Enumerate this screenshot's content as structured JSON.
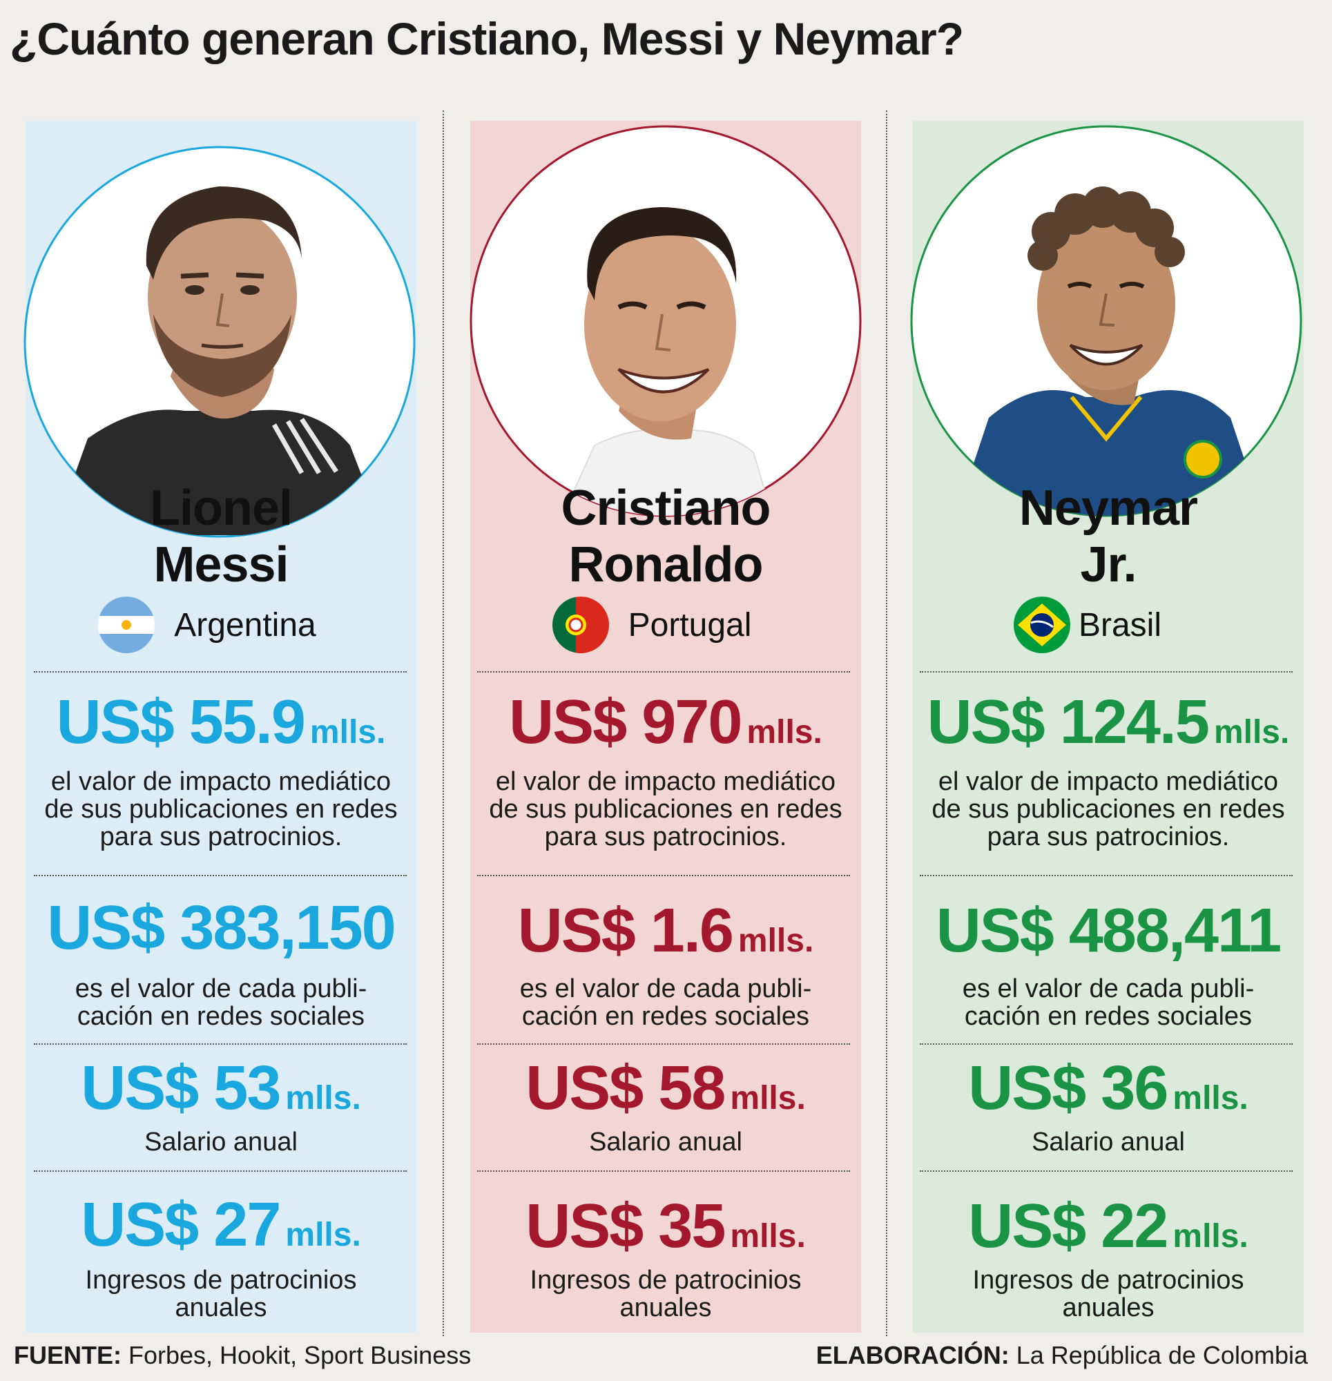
{
  "title": "¿Cuánto generan Cristiano, Messi y Neymar?",
  "colors": {
    "messi": "#1aa7de",
    "ronaldo": "#a3182d",
    "neymar": "#1b9344"
  },
  "players": [
    {
      "name_line1": "Lionel",
      "name_line2": "Messi",
      "country": "Argentina",
      "flag_icon": "argentina-flag-icon",
      "stats": [
        {
          "value": "US$ 55.9",
          "unit": "mlls.",
          "desc": [
            "el valor de impacto mediático",
            "de sus publicaciones en redes",
            "para sus patrocinios."
          ]
        },
        {
          "value": "US$ 383,150",
          "unit": "",
          "desc": [
            "es el valor de cada publi-",
            "cación en redes sociales"
          ]
        },
        {
          "value": "US$ 53",
          "unit": "mlls.",
          "desc": [
            "Salario anual"
          ]
        },
        {
          "value": "US$ 27",
          "unit": "mlls.",
          "desc": [
            "Ingresos de patrocinios",
            "anuales"
          ]
        }
      ]
    },
    {
      "name_line1": "Cristiano",
      "name_line2": "Ronaldo",
      "country": "Portugal",
      "flag_icon": "portugal-flag-icon",
      "stats": [
        {
          "value": "US$ 970",
          "unit": "mlls.",
          "desc": [
            "el valor de impacto mediático",
            "de sus publicaciones en redes",
            "para sus patrocinios."
          ]
        },
        {
          "value": "US$ 1.6",
          "unit": "mlls.",
          "desc": [
            "es el valor de cada publi-",
            "cación en redes sociales"
          ]
        },
        {
          "value": "US$ 58",
          "unit": "mlls.",
          "desc": [
            "Salario anual"
          ]
        },
        {
          "value": "US$ 35",
          "unit": "mlls.",
          "desc": [
            "Ingresos de patrocinios",
            "anuales"
          ]
        }
      ]
    },
    {
      "name_line1": "Neymar",
      "name_line2": "Jr.",
      "country": "Brasil",
      "flag_icon": "brazil-flag-icon",
      "stats": [
        {
          "value": "US$ 124.5",
          "unit": "mlls.",
          "desc": [
            "el valor de impacto mediático",
            "de sus publicaciones en redes",
            "para sus patrocinios."
          ]
        },
        {
          "value": "US$ 488,411",
          "unit": "",
          "desc": [
            "es el valor de cada publi-",
            "cación en redes sociales"
          ]
        },
        {
          "value": "US$ 36",
          "unit": "mlls.",
          "desc": [
            "Salario anual"
          ]
        },
        {
          "value": "US$ 22",
          "unit": "mlls.",
          "desc": [
            "Ingresos de patrocinios",
            "anuales"
          ]
        }
      ]
    }
  ],
  "footer": {
    "source_label": "FUENTE:",
    "source_text": " Forbes, Hookit, Sport Business",
    "credit_label": "ELABORACIÓN:",
    "credit_text": " La República de Colombia"
  }
}
